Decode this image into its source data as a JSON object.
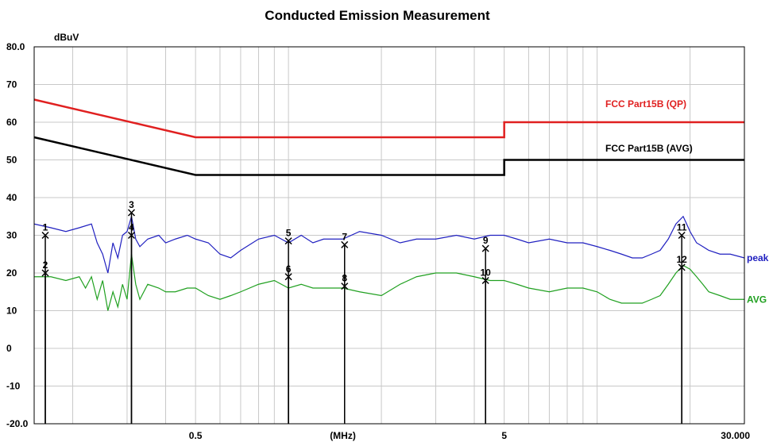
{
  "chart_data": {
    "type": "line",
    "title": "Conducted Emission Measurement",
    "ylabel": "dBuV",
    "xlabel": "(MHz)",
    "x_scale": "log",
    "xlim": [
      0.15,
      30
    ],
    "ylim": [
      -20,
      80
    ],
    "y_ticks": [
      "80.0",
      "70",
      "60",
      "50",
      "40",
      "30",
      "20",
      "10",
      "0",
      "-10",
      "-20.0"
    ],
    "x_tick_labels": [
      {
        "value": 0.5,
        "label": "0.5"
      },
      {
        "value": 1.5,
        "label": "(MHz)"
      },
      {
        "value": 5,
        "label": "5"
      },
      {
        "value": 30,
        "label": "30.000"
      }
    ],
    "grid": true,
    "limits": [
      {
        "name": "FCC Part15B  (QP)",
        "color": "#e02020",
        "points": [
          [
            0.15,
            66
          ],
          [
            0.5,
            56
          ],
          [
            5,
            56
          ],
          [
            5,
            60
          ],
          [
            30,
            60
          ]
        ]
      },
      {
        "name": "FCC Part15B (AVG)",
        "color": "#000000",
        "points": [
          [
            0.15,
            56
          ],
          [
            0.5,
            46
          ],
          [
            5,
            46
          ],
          [
            5,
            50
          ],
          [
            30,
            50
          ]
        ]
      }
    ],
    "series": [
      {
        "name": "peak",
        "color": "#2020c0",
        "points": [
          [
            0.15,
            33
          ],
          [
            0.17,
            32
          ],
          [
            0.19,
            31
          ],
          [
            0.21,
            32
          ],
          [
            0.23,
            33
          ],
          [
            0.24,
            28
          ],
          [
            0.25,
            25
          ],
          [
            0.26,
            20
          ],
          [
            0.27,
            28
          ],
          [
            0.28,
            24
          ],
          [
            0.29,
            30
          ],
          [
            0.3,
            31
          ],
          [
            0.31,
            35
          ],
          [
            0.32,
            29
          ],
          [
            0.33,
            27
          ],
          [
            0.35,
            29
          ],
          [
            0.38,
            30
          ],
          [
            0.4,
            28
          ],
          [
            0.43,
            29
          ],
          [
            0.47,
            30
          ],
          [
            0.5,
            29
          ],
          [
            0.55,
            28
          ],
          [
            0.6,
            25
          ],
          [
            0.65,
            24
          ],
          [
            0.7,
            26
          ],
          [
            0.8,
            29
          ],
          [
            0.9,
            30
          ],
          [
            1.0,
            28
          ],
          [
            1.1,
            30
          ],
          [
            1.2,
            28
          ],
          [
            1.3,
            29
          ],
          [
            1.5,
            29
          ],
          [
            1.7,
            31
          ],
          [
            2.0,
            30
          ],
          [
            2.3,
            28
          ],
          [
            2.6,
            29
          ],
          [
            3.0,
            29
          ],
          [
            3.5,
            30
          ],
          [
            4.0,
            29
          ],
          [
            4.5,
            30
          ],
          [
            5.0,
            30
          ],
          [
            5.5,
            29
          ],
          [
            6.0,
            28
          ],
          [
            7.0,
            29
          ],
          [
            8.0,
            28
          ],
          [
            9.0,
            28
          ],
          [
            10.0,
            27
          ],
          [
            11.0,
            26
          ],
          [
            12.0,
            25
          ],
          [
            13.0,
            24
          ],
          [
            14.0,
            24
          ],
          [
            15.0,
            25
          ],
          [
            16.0,
            26
          ],
          [
            17.0,
            29
          ],
          [
            18.0,
            33
          ],
          [
            19.0,
            35
          ],
          [
            19.5,
            33
          ],
          [
            20.0,
            31
          ],
          [
            21.0,
            28
          ],
          [
            22.0,
            27
          ],
          [
            23.0,
            26
          ],
          [
            25.0,
            25
          ],
          [
            27.0,
            25
          ],
          [
            30.0,
            24
          ]
        ]
      },
      {
        "name": "AVG",
        "color": "#20a020",
        "points": [
          [
            0.15,
            19
          ],
          [
            0.17,
            19
          ],
          [
            0.19,
            18
          ],
          [
            0.21,
            19
          ],
          [
            0.22,
            16
          ],
          [
            0.23,
            19
          ],
          [
            0.24,
            13
          ],
          [
            0.25,
            18
          ],
          [
            0.26,
            10
          ],
          [
            0.27,
            15
          ],
          [
            0.28,
            11
          ],
          [
            0.29,
            17
          ],
          [
            0.3,
            13
          ],
          [
            0.31,
            25
          ],
          [
            0.32,
            17
          ],
          [
            0.33,
            13
          ],
          [
            0.35,
            17
          ],
          [
            0.38,
            16
          ],
          [
            0.4,
            15
          ],
          [
            0.43,
            15
          ],
          [
            0.47,
            16
          ],
          [
            0.5,
            16
          ],
          [
            0.55,
            14
          ],
          [
            0.6,
            13
          ],
          [
            0.65,
            14
          ],
          [
            0.7,
            15
          ],
          [
            0.8,
            17
          ],
          [
            0.9,
            18
          ],
          [
            1.0,
            16
          ],
          [
            1.1,
            17
          ],
          [
            1.2,
            16
          ],
          [
            1.3,
            16
          ],
          [
            1.5,
            16
          ],
          [
            1.7,
            15
          ],
          [
            2.0,
            14
          ],
          [
            2.3,
            17
          ],
          [
            2.6,
            19
          ],
          [
            3.0,
            20
          ],
          [
            3.5,
            20
          ],
          [
            4.0,
            19
          ],
          [
            4.5,
            18
          ],
          [
            5.0,
            18
          ],
          [
            5.5,
            17
          ],
          [
            6.0,
            16
          ],
          [
            7.0,
            15
          ],
          [
            8.0,
            16
          ],
          [
            9.0,
            16
          ],
          [
            10.0,
            15
          ],
          [
            11.0,
            13
          ],
          [
            12.0,
            12
          ],
          [
            13.0,
            12
          ],
          [
            14.0,
            12
          ],
          [
            15.0,
            13
          ],
          [
            16.0,
            14
          ],
          [
            17.0,
            17
          ],
          [
            18.0,
            20
          ],
          [
            19.0,
            22
          ],
          [
            20.0,
            21
          ],
          [
            21.0,
            19
          ],
          [
            22.0,
            17
          ],
          [
            23.0,
            15
          ],
          [
            25.0,
            14
          ],
          [
            27.0,
            13
          ],
          [
            30.0,
            13
          ]
        ]
      }
    ],
    "markers": [
      {
        "id": "1",
        "x": 0.163,
        "y": 30
      },
      {
        "id": "2",
        "x": 0.163,
        "y": 20
      },
      {
        "id": "3",
        "x": 0.31,
        "y": 36
      },
      {
        "id": "4",
        "x": 0.31,
        "y": 30
      },
      {
        "id": "5",
        "x": 1.0,
        "y": 28.5
      },
      {
        "id": "6",
        "x": 1.0,
        "y": 19
      },
      {
        "id": "7",
        "x": 1.52,
        "y": 27.5
      },
      {
        "id": "8",
        "x": 1.52,
        "y": 16.5
      },
      {
        "id": "9",
        "x": 4.35,
        "y": 26.5
      },
      {
        "id": "10",
        "x": 4.35,
        "y": 18
      },
      {
        "id": "11",
        "x": 18.8,
        "y": 30
      },
      {
        "id": "12",
        "x": 18.8,
        "y": 21.5
      }
    ]
  }
}
